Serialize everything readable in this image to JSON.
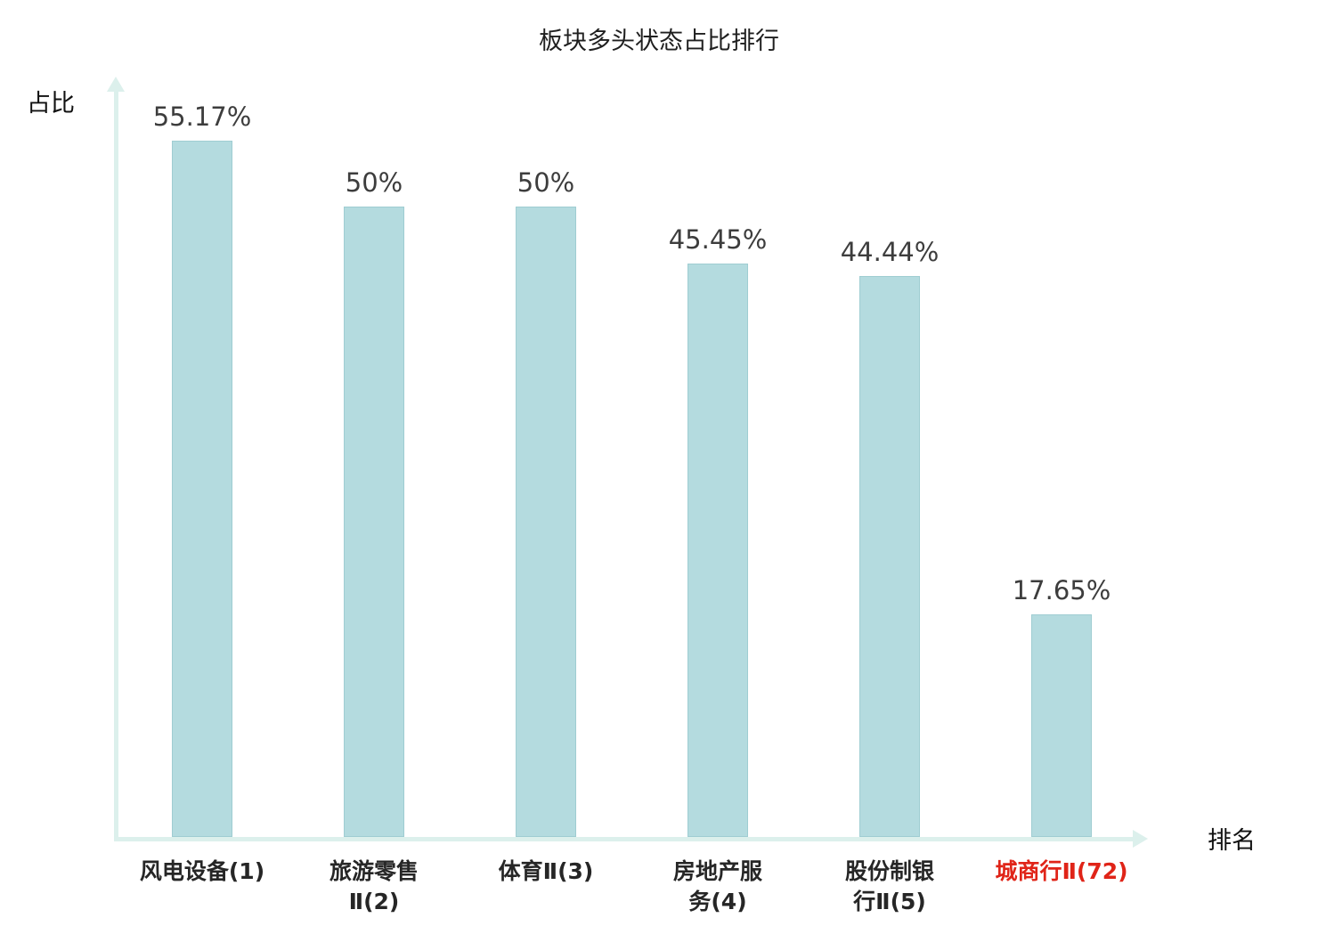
{
  "chart_data": {
    "type": "bar",
    "title": "板块多头状态占比排行",
    "ylabel": "占比",
    "xlabel": "排名",
    "categories": [
      "风电设备(1)",
      "旅游零售Ⅱ(2)",
      "体育Ⅱ(3)",
      "房地产服务(4)",
      "股份制银行Ⅱ(5)",
      "城商行Ⅱ(72)"
    ],
    "category_display": [
      "风电设备(1)",
      "旅游零售\nⅡ(2)",
      "体育Ⅱ(3)",
      "房地产服\n务(4)",
      "股份制银\n行Ⅱ(5)",
      "城商行Ⅱ(72)"
    ],
    "values": [
      55.17,
      50,
      50,
      45.45,
      44.44,
      17.65
    ],
    "value_labels": [
      "55.17%",
      "50%",
      "50%",
      "45.45%",
      "44.44%",
      "17.65%"
    ],
    "highlight_index": 5,
    "ylim": [
      0,
      60
    ],
    "grid": false,
    "legend": "none",
    "colors": {
      "bar_fill": "#b4dbdf",
      "bar_border": "#9fcdd2",
      "axis": "#dcf0ec",
      "value_text": "#3d3d3d",
      "category_text": "#262626",
      "highlight_text": "#e02418"
    }
  }
}
